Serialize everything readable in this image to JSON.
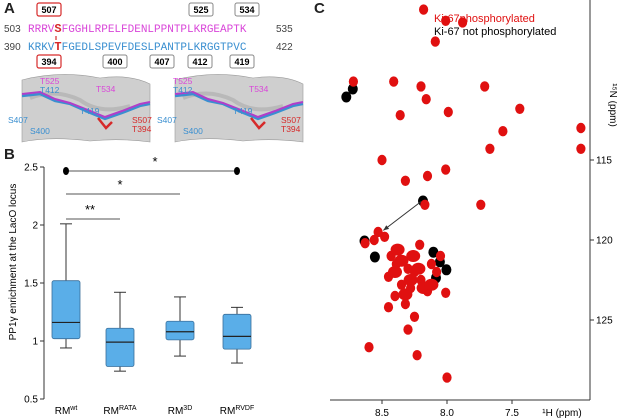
{
  "panels": {
    "a": "A",
    "b": "B",
    "c": "C"
  },
  "panel_a": {
    "top_boxes": [
      "507",
      "525",
      "534"
    ],
    "bottom_boxes": [
      "394",
      "400",
      "407",
      "412",
      "419"
    ],
    "seq_top": {
      "start": "503",
      "end": "535",
      "prefix": "RRRV",
      "highlight": "S",
      "rest": "FGGHLRPELFDENLPPNTPLKRGEAPTK"
    },
    "seq_bottom": {
      "start": "390",
      "end": "422",
      "prefix": "KRKV",
      "highlight": "T",
      "rest": "FGEDLSPEVFDESLPANTPLKRGGTPVC"
    },
    "structure_labels": {
      "t525": "T525",
      "t412": "T412",
      "t534": "T534",
      "t419": "T419",
      "s407": "S407",
      "s400": "S400",
      "s507": "S507",
      "t394": "T394"
    },
    "colors": {
      "magenta": "#d946d9",
      "blue": "#3a8fd0",
      "red": "#d62a2a"
    }
  },
  "panel_b": {
    "ylabel": "PP1γ enrichment at the LacO locus",
    "sig": {
      "a": "**",
      "b": "*",
      "c": "*"
    },
    "x_labels": [
      {
        "base": "RM",
        "sup": "wt"
      },
      {
        "base": "RM",
        "sup": "RATA"
      },
      {
        "base": "RM",
        "sup": "3D"
      },
      {
        "base": "RM",
        "sup": "RVDF"
      }
    ]
  },
  "panel_c": {
    "legend": [
      "Ki-67phosphorylated",
      "Ki-67 not phosphorylated"
    ],
    "ylabel": "¹⁵N (ppm)",
    "xlabel": "¹H (ppm)"
  },
  "chart_data": [
    {
      "type": "box",
      "categories": [
        "RMwt",
        "RMRATA",
        "RM3D",
        "RMRVDF"
      ],
      "series": [
        {
          "values": [
            {
              "min": 0.94,
              "q1": 1.02,
              "median": 1.16,
              "q3": 1.52,
              "max": 2.01
            },
            {
              "min": 0.74,
              "q1": 0.78,
              "median": 0.99,
              "q3": 1.11,
              "max": 1.42
            },
            {
              "min": 0.87,
              "q1": 1.01,
              "median": 1.08,
              "q3": 1.17,
              "max": 1.38
            },
            {
              "min": 0.81,
              "q1": 0.93,
              "median": 1.04,
              "q3": 1.23,
              "max": 1.29
            }
          ]
        }
      ],
      "outliers": [
        {
          "category": "RMwt",
          "value": 2.5
        },
        {
          "category": "RMRVDF",
          "value": 2.5
        }
      ],
      "ylim": [
        0.5,
        2.5
      ],
      "yticks": [
        0.5,
        1,
        1.5,
        2,
        2.5
      ],
      "significance": [
        {
          "from": "RMwt",
          "to": "RMRATA",
          "label": "**"
        },
        {
          "from": "RMwt",
          "to": "RM3D",
          "label": "*"
        },
        {
          "from": "RMwt",
          "to": "RMRVDF",
          "label": "*"
        }
      ],
      "box_color": "#5aaee8"
    },
    {
      "type": "scatter",
      "xlabel": "¹H (ppm)",
      "ylabel": "¹⁵N (ppm)",
      "xlim": [
        8.9,
        6.9
      ],
      "ylim": [
        105,
        130
      ],
      "xticks": [
        8.5,
        8.0,
        7.5
      ],
      "yticks": [
        115,
        120,
        125
      ],
      "series": [
        {
          "name": "Ki-67phosphorylated",
          "color": "#e01010",
          "points": [
            [
              8.18,
              105.6
            ],
            [
              8.01,
              106.3
            ],
            [
              7.88,
              106.4
            ],
            [
              8.09,
              107.6
            ],
            [
              8.72,
              110.1
            ],
            [
              8.41,
              110.1
            ],
            [
              8.2,
              110.4
            ],
            [
              7.71,
              110.4
            ],
            [
              8.16,
              111.2
            ],
            [
              7.44,
              111.8
            ],
            [
              7.99,
              112.0
            ],
            [
              8.36,
              112.2
            ],
            [
              7.57,
              113.2
            ],
            [
              6.97,
              113.0
            ],
            [
              6.97,
              114.3
            ],
            [
              7.67,
              114.3
            ],
            [
              8.5,
              115.0
            ],
            [
              8.01,
              115.6
            ],
            [
              8.15,
              116.0
            ],
            [
              8.32,
              116.3
            ],
            [
              7.74,
              117.8
            ],
            [
              8.17,
              117.8
            ],
            [
              8.56,
              120.0
            ],
            [
              8.53,
              119.5
            ],
            [
              8.48,
              119.8
            ],
            [
              8.63,
              120.2
            ],
            [
              8.21,
              120.3
            ],
            [
              8.43,
              121.0
            ],
            [
              8.39,
              121.5
            ],
            [
              8.3,
              121.8
            ],
            [
              8.25,
              122.0
            ],
            [
              8.2,
              122.5
            ],
            [
              8.45,
              122.3
            ],
            [
              8.35,
              122.8
            ],
            [
              8.28,
              123.0
            ],
            [
              8.15,
              123.2
            ],
            [
              8.12,
              121.5
            ],
            [
              8.05,
              121.0
            ],
            [
              8.08,
              122.0
            ],
            [
              8.4,
              123.5
            ],
            [
              8.32,
              124.0
            ],
            [
              8.25,
              124.8
            ],
            [
              8.45,
              124.2
            ],
            [
              8.01,
              123.3
            ],
            [
              8.3,
              125.6
            ],
            [
              8.6,
              126.7
            ],
            [
              8.23,
              127.2
            ],
            [
              8.0,
              128.6
            ]
          ]
        },
        {
          "name": "Ki-67 not phosphorylated",
          "color": "#000000",
          "points": [
            [
              8.74,
              110.5
            ],
            [
              8.79,
              111.0
            ],
            [
              8.2,
              117.5
            ],
            [
              8.65,
              120.0
            ],
            [
              8.57,
              121.0
            ],
            [
              8.12,
              120.7
            ],
            [
              8.07,
              121.3
            ],
            [
              8.02,
              121.8
            ],
            [
              8.1,
              122.3
            ]
          ]
        }
      ],
      "annotations": [
        {
          "type": "arrow",
          "from": [
            8.2,
            117.6
          ],
          "to": [
            8.49,
            119.4
          ]
        }
      ]
    }
  ]
}
